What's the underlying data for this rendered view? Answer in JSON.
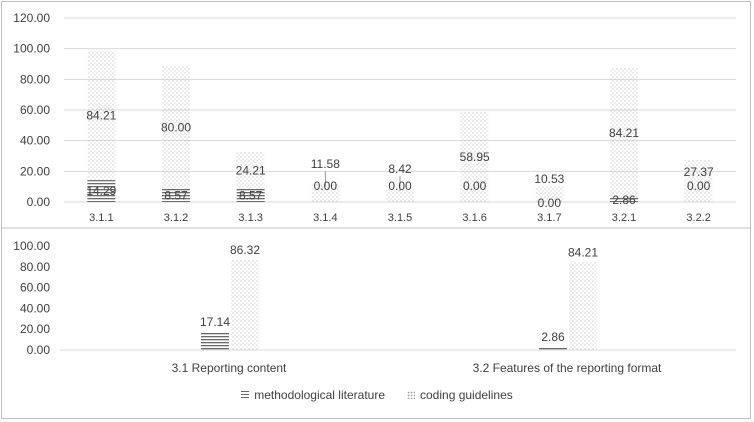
{
  "chart_data": [
    {
      "type": "bar",
      "categories": [
        "3.1.1",
        "3.1.2",
        "3.1.3",
        "3.1.4",
        "3.1.5",
        "3.1.6",
        "3.1.7",
        "3.2.1",
        "3.2.2"
      ],
      "series": [
        {
          "name": "methodological literature",
          "values": [
            14.29,
            8.57,
            8.57,
            0.0,
            0.0,
            0.0,
            0.0,
            2.86,
            0.0
          ]
        },
        {
          "name": "coding guidelines",
          "values": [
            84.21,
            80.0,
            24.21,
            11.58,
            8.42,
            58.95,
            10.53,
            84.21,
            27.37
          ]
        }
      ],
      "ylim": [
        0,
        120
      ],
      "yticks": [
        "0.00",
        "20.00",
        "40.00",
        "60.00",
        "80.00",
        "100.00",
        "120.00"
      ],
      "grid": true
    },
    {
      "type": "bar",
      "categories": [
        "3.1 Reporting content",
        "3.2 Features of the reporting format"
      ],
      "series": [
        {
          "name": "methodological literature",
          "values": [
            17.14,
            2.86
          ]
        },
        {
          "name": "coding guidelines",
          "values": [
            86.32,
            84.21
          ]
        }
      ],
      "ylim": [
        0,
        100
      ],
      "yticks": [
        "0.00",
        "20.00",
        "40.00",
        "60.00",
        "80.00",
        "100.00"
      ],
      "grid": true
    }
  ],
  "legend": {
    "items": [
      {
        "label": "methodological literature",
        "pattern": "horizontal-stripes"
      },
      {
        "label": "coding guidelines",
        "pattern": "dots"
      }
    ],
    "placement": "bottom"
  },
  "colors": {
    "stripe": "#6b6b6b",
    "dot": "#9a9a9a",
    "grid": "#d9d9d9",
    "text": "#404040"
  }
}
